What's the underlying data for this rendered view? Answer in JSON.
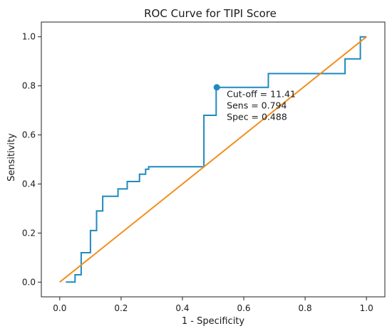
{
  "chart_data": {
    "type": "line",
    "title": "ROC Curve for TIPI Score",
    "xlabel": "1 - Specificity",
    "ylabel": "Sensitivity",
    "xlim": [
      0.0,
      1.0
    ],
    "ylim": [
      0.0,
      1.0
    ],
    "xticks": [
      "0.0",
      "0.2",
      "0.4",
      "0.6",
      "0.8",
      "1.0"
    ],
    "yticks": [
      "0.0",
      "0.2",
      "0.4",
      "0.6",
      "0.8",
      "1.0"
    ],
    "grid": false,
    "legend": "none",
    "series": [
      {
        "kind": "step",
        "color": "#1f8ac0",
        "x": [
          0.02,
          0.05,
          0.05,
          0.07,
          0.07,
          0.1,
          0.1,
          0.12,
          0.12,
          0.14,
          0.14,
          0.19,
          0.19,
          0.22,
          0.22,
          0.26,
          0.26,
          0.28,
          0.28,
          0.29,
          0.29,
          0.47,
          0.47,
          0.51,
          0.51,
          0.68,
          0.68,
          0.93,
          0.93,
          0.98,
          0.98,
          1.0
        ],
        "y": [
          0.0,
          0.0,
          0.03,
          0.03,
          0.12,
          0.12,
          0.21,
          0.21,
          0.29,
          0.29,
          0.35,
          0.35,
          0.38,
          0.38,
          0.41,
          0.41,
          0.44,
          0.44,
          0.46,
          0.46,
          0.47,
          0.47,
          0.68,
          0.68,
          0.794,
          0.794,
          0.85,
          0.85,
          0.91,
          0.91,
          1.0,
          1.0
        ]
      },
      {
        "kind": "reference",
        "color": "#f28e1c",
        "x": [
          0.0,
          1.0
        ],
        "y": [
          0.0,
          1.0
        ]
      }
    ],
    "marker": {
      "x": 0.512,
      "y": 0.794,
      "color": "#1f8ac0"
    },
    "annotation": [
      "Cut-off = 11.41",
      "Sens = 0.794",
      "Spec = 0.488"
    ]
  }
}
